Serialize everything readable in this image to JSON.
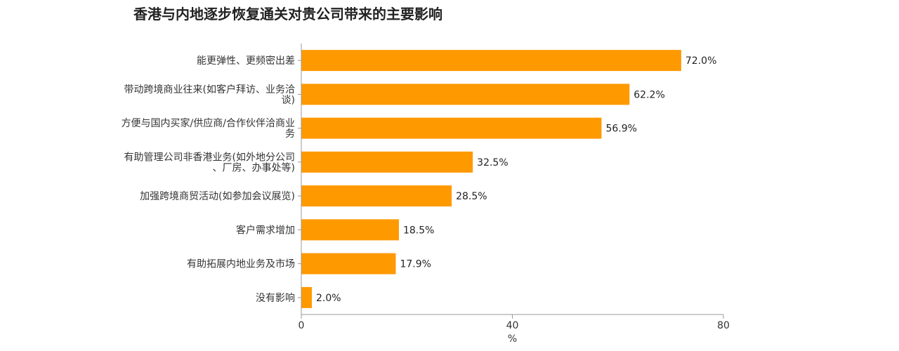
{
  "chart_data": {
    "type": "bar",
    "orientation": "horizontal",
    "title": "香港与内地逐步恢复通关对贵公司带来的主要影响",
    "categories": [
      "能更弹性、更频密出差",
      "带动跨境商业往来(如客户拜访、业务洽谈)",
      "方便与国内买家/供应商/合作伙伴洽商业务",
      "有助管理公司非香港业务(如外地分公司、厂房、办事处等)",
      "加强跨境商贸活动(如参加会议展览)",
      "客户需求增加",
      "有助拓展内地业务及市场",
      "没有影响"
    ],
    "category_lines": [
      [
        "能更弹性、更频密出差"
      ],
      [
        "带动跨境商业往来(如客户拜访、业务洽",
        "谈)"
      ],
      [
        "方便与国内买家/供应商/合作伙伴洽商业",
        "务"
      ],
      [
        "有助管理公司非香港业务(如外地分公司",
        "、厂房、办事处等)"
      ],
      [
        "加强跨境商贸活动(如参加会议展览)"
      ],
      [
        "客户需求增加"
      ],
      [
        "有助拓展内地业务及市场"
      ],
      [
        "没有影响"
      ]
    ],
    "values": [
      72.0,
      62.2,
      56.9,
      32.5,
      28.5,
      18.5,
      17.9,
      2.0
    ],
    "value_labels": [
      "72.0%",
      "62.2%",
      "56.9%",
      "32.5%",
      "28.5%",
      "18.5%",
      "17.9%",
      "2.0%"
    ],
    "xlabel": "%",
    "ylabel": "",
    "xlim": [
      0,
      80
    ],
    "ticks": [
      0,
      40,
      80
    ],
    "grid": false,
    "legend": "none",
    "bar_color": "#FF9900",
    "axis_color": "#999999"
  }
}
